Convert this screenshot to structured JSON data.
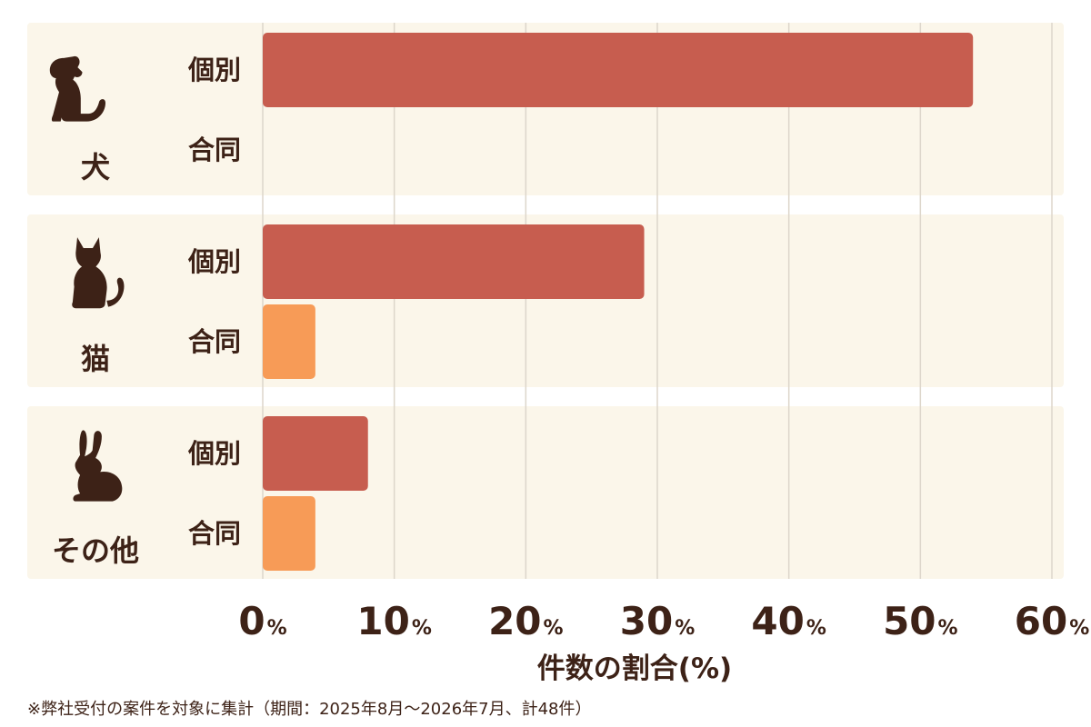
{
  "chart_data": {
    "type": "bar",
    "orientation": "horizontal",
    "groups": [
      {
        "name": "犬",
        "icon": "dog-icon",
        "categories": [
          "個別",
          "合同"
        ],
        "values": [
          54,
          0
        ]
      },
      {
        "name": "猫",
        "icon": "cat-icon",
        "categories": [
          "個別",
          "合同"
        ],
        "values": [
          29,
          4
        ]
      },
      {
        "name": "その他",
        "icon": "rabbit-icon",
        "categories": [
          "個別",
          "合同"
        ],
        "values": [
          8,
          4
        ]
      }
    ],
    "xlim": [
      0,
      60
    ],
    "xticks": [
      0,
      10,
      20,
      30,
      40,
      50,
      60
    ],
    "tick_suffix": "%",
    "xlabel": "件数の割合(%)",
    "grid": true,
    "colors": {
      "個別": "#c75d4f",
      "合同": "#f79b57"
    },
    "footnote": "※弊社受付の案件を対象に集計（期間：2025年8月～2026年7月、計48件）"
  }
}
